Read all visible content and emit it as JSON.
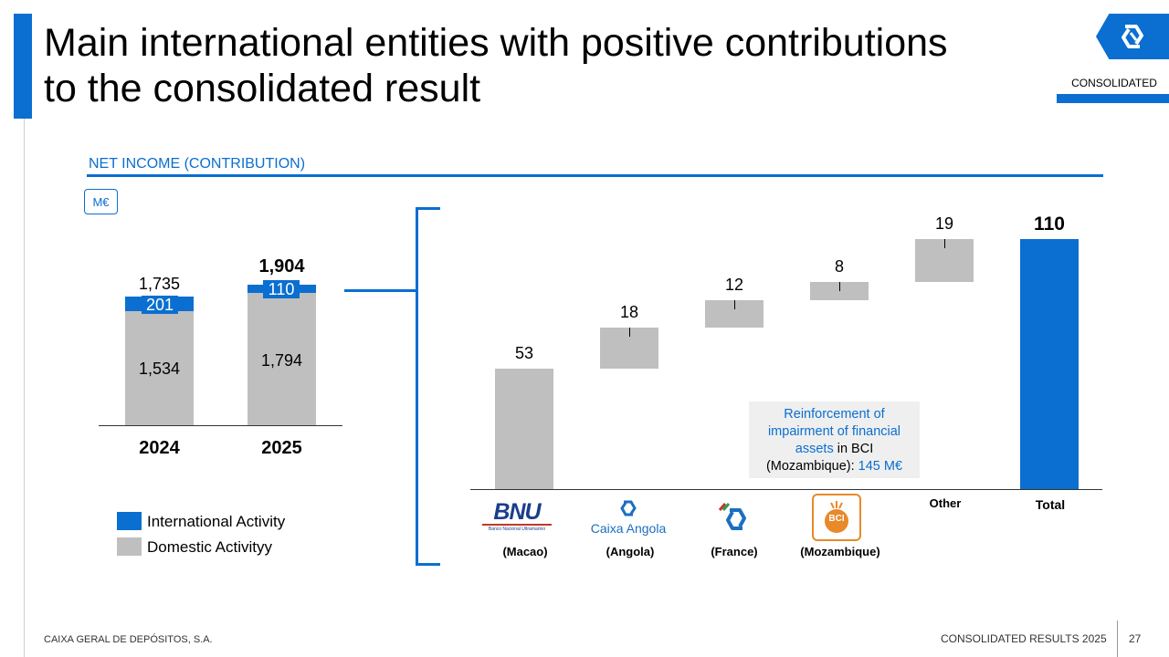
{
  "header": {
    "title_line1": "Main international entities with positive contributions",
    "title_line2": "to the consolidated result",
    "badge": "CONSOLIDATED"
  },
  "section_title": "NET INCOME (CONTRIBUTION)",
  "unit": "M€",
  "colors": {
    "accent": "#0a6fd0",
    "domestic": "#bfbfbf",
    "international": "#0a6fd0"
  },
  "chart_data": [
    {
      "type": "bar",
      "stacked": true,
      "categories": [
        "2024",
        "2025"
      ],
      "series": [
        {
          "name": "Domestic Activityy",
          "values": [
            1534,
            1794
          ]
        },
        {
          "name": "International Activity",
          "values": [
            201,
            110
          ]
        }
      ],
      "totals": [
        1735,
        1904
      ],
      "labels": {
        "domestic": [
          "1,534",
          "1,794"
        ],
        "international": [
          "201",
          "110"
        ],
        "totals": [
          "1,735",
          "1,904"
        ]
      },
      "legend": [
        "International Activity",
        "Domestic Activityy"
      ]
    },
    {
      "type": "bar",
      "waterfall": true,
      "categories": [
        "(Macao)",
        "(Angola)",
        "(France)",
        "(Mozambique)",
        "Other",
        "Total"
      ],
      "values": [
        53,
        18,
        12,
        8,
        19,
        110
      ],
      "value_labels": [
        "53",
        "18",
        "12",
        "8",
        "19",
        "110"
      ],
      "logos": [
        "BNU",
        "Caixa Angola",
        "",
        "BCI"
      ],
      "logo_subtexts": [
        "Banco Nacional Ultramarino",
        "",
        "",
        ""
      ]
    }
  ],
  "note": {
    "line1": "Reinforcement of",
    "line2": "impairment of financial",
    "line3a": "assets",
    "line3b": " in BCI",
    "line4a": "(Mozambique): ",
    "line4b": "145 M€"
  },
  "footer": {
    "company": "CAIXA GERAL DE DEPÓSITOS, S.A.",
    "report": "CONSOLIDATED RESULTS 2025",
    "page": "27"
  }
}
